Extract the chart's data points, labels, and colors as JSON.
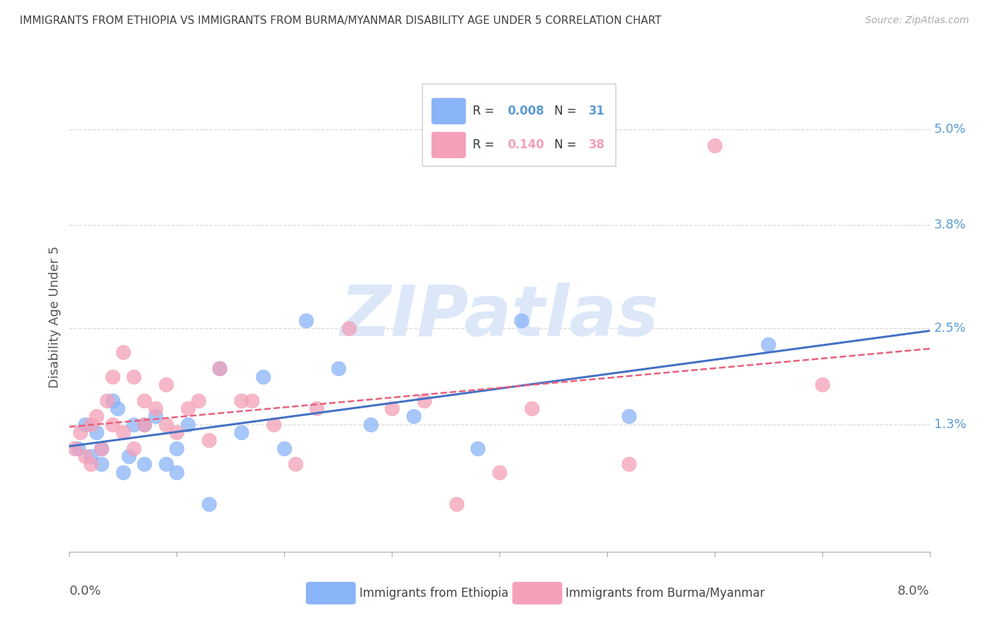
{
  "title": "IMMIGRANTS FROM ETHIOPIA VS IMMIGRANTS FROM BURMA/MYANMAR DISABILITY AGE UNDER 5 CORRELATION CHART",
  "source": "Source: ZipAtlas.com",
  "ylabel": "Disability Age Under 5",
  "xlim": [
    0.0,
    0.08
  ],
  "ylim": [
    -0.003,
    0.056
  ],
  "ethiopia_color": "#8ab4f8",
  "burma_color": "#f4a0b8",
  "trend_blue": "#4472c4",
  "trend_pink": "#e8607a",
  "axis_label_color": "#5b9bd5",
  "grid_color": "#d9d9d9",
  "title_color": "#404040",
  "background_color": "#ffffff",
  "watermark_color": "#dce8f8",
  "ethiopia_R": 0.008,
  "ethiopia_N": 31,
  "burma_R": 0.14,
  "burma_N": 38,
  "ytick_vals": [
    0.013,
    0.025,
    0.038,
    0.05
  ],
  "ytick_labels": [
    "1.3%",
    "2.5%",
    "3.8%",
    "5.0%"
  ],
  "ethiopia_x": [
    0.0008,
    0.0015,
    0.002,
    0.0025,
    0.003,
    0.003,
    0.004,
    0.0045,
    0.005,
    0.0055,
    0.006,
    0.007,
    0.007,
    0.008,
    0.009,
    0.01,
    0.01,
    0.011,
    0.013,
    0.014,
    0.016,
    0.018,
    0.02,
    0.022,
    0.025,
    0.028,
    0.032,
    0.038,
    0.042,
    0.052,
    0.065
  ],
  "ethiopia_y": [
    0.01,
    0.013,
    0.009,
    0.012,
    0.01,
    0.008,
    0.016,
    0.015,
    0.007,
    0.009,
    0.013,
    0.013,
    0.008,
    0.014,
    0.008,
    0.01,
    0.007,
    0.013,
    0.003,
    0.02,
    0.012,
    0.019,
    0.01,
    0.026,
    0.02,
    0.013,
    0.014,
    0.01,
    0.026,
    0.014,
    0.023
  ],
  "burma_x": [
    0.0005,
    0.001,
    0.0015,
    0.002,
    0.002,
    0.0025,
    0.003,
    0.0035,
    0.004,
    0.004,
    0.005,
    0.005,
    0.006,
    0.006,
    0.007,
    0.007,
    0.008,
    0.009,
    0.009,
    0.01,
    0.011,
    0.012,
    0.013,
    0.014,
    0.016,
    0.017,
    0.019,
    0.021,
    0.023,
    0.026,
    0.03,
    0.033,
    0.036,
    0.04,
    0.043,
    0.052,
    0.06,
    0.07
  ],
  "burma_y": [
    0.01,
    0.012,
    0.009,
    0.008,
    0.013,
    0.014,
    0.01,
    0.016,
    0.019,
    0.013,
    0.012,
    0.022,
    0.019,
    0.01,
    0.013,
    0.016,
    0.015,
    0.018,
    0.013,
    0.012,
    0.015,
    0.016,
    0.011,
    0.02,
    0.016,
    0.016,
    0.013,
    0.008,
    0.015,
    0.025,
    0.015,
    0.016,
    0.003,
    0.007,
    0.015,
    0.008,
    0.048,
    0.018
  ]
}
